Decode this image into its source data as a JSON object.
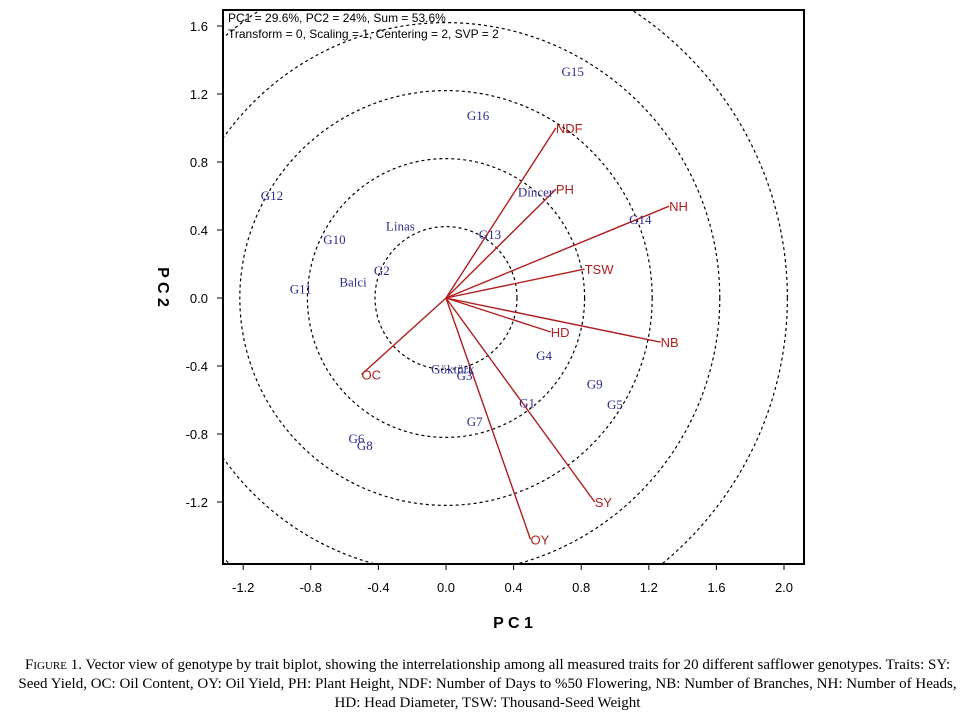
{
  "chart_data": {
    "type": "scatter",
    "header": {
      "line1": "PC1 = 29.6%, PC2 = 24%, Sum = 53.6%",
      "line2": "Transform = 0, Scaling = 1, Centering = 2, SVP = 2"
    },
    "xlabel": "P C 1",
    "ylabel": "P C 2",
    "xlim": [
      -1.3,
      2.1
    ],
    "ylim": [
      -1.55,
      1.7
    ],
    "x_ticks": [
      "-1.2",
      "-0.8",
      "-0.4",
      "0.0",
      "0.4",
      "0.8",
      "1.2",
      "1.6",
      "2.0"
    ],
    "y_ticks": [
      "1.6",
      "1.2",
      "0.8",
      "0.4",
      "0.0",
      "-0.4",
      "-0.8",
      "-1.2"
    ],
    "circle_radii": [
      0.42,
      0.82,
      1.22,
      1.62,
      2.02
    ],
    "origin": [
      0,
      0
    ],
    "traits": [
      {
        "label": "NDF",
        "x": 0.65,
        "y": 1.0
      },
      {
        "label": "PH",
        "x": 0.65,
        "y": 0.64
      },
      {
        "label": "NH",
        "x": 1.32,
        "y": 0.54
      },
      {
        "label": "TSW",
        "x": 0.82,
        "y": 0.17
      },
      {
        "label": "HD",
        "x": 0.62,
        "y": -0.2
      },
      {
        "label": "NB",
        "x": 1.27,
        "y": -0.26
      },
      {
        "label": "SY",
        "x": 0.88,
        "y": -1.2
      },
      {
        "label": "OY",
        "x": 0.5,
        "y": -1.42
      },
      {
        "label": "OC",
        "x": -0.5,
        "y": -0.45
      }
    ],
    "genotypes": [
      {
        "label": "G15",
        "x": 0.75,
        "y": 1.33
      },
      {
        "label": "G16",
        "x": 0.19,
        "y": 1.07
      },
      {
        "label": "Dincer",
        "x": 0.53,
        "y": 0.62
      },
      {
        "label": "G12",
        "x": -1.03,
        "y": 0.6
      },
      {
        "label": "G14",
        "x": 1.15,
        "y": 0.46
      },
      {
        "label": "Linas",
        "x": -0.27,
        "y": 0.42
      },
      {
        "label": "G13",
        "x": 0.26,
        "y": 0.37
      },
      {
        "label": "G10",
        "x": -0.66,
        "y": 0.34
      },
      {
        "label": "G2",
        "x": -0.38,
        "y": 0.16
      },
      {
        "label": "Balci",
        "x": -0.55,
        "y": 0.09
      },
      {
        "label": "G11",
        "x": -0.86,
        "y": 0.05
      },
      {
        "label": "G4",
        "x": 0.58,
        "y": -0.34
      },
      {
        "label": "Göktürk",
        "x": 0.04,
        "y": -0.42
      },
      {
        "label": "G3",
        "x": 0.11,
        "y": -0.46
      },
      {
        "label": "G9",
        "x": 0.88,
        "y": -0.51
      },
      {
        "label": "G1",
        "x": 0.48,
        "y": -0.62
      },
      {
        "label": "G5",
        "x": 1.0,
        "y": -0.63
      },
      {
        "label": "G7",
        "x": 0.17,
        "y": -0.73
      },
      {
        "label": "G6",
        "x": -0.53,
        "y": -0.83
      },
      {
        "label": "G8",
        "x": -0.48,
        "y": -0.87
      }
    ]
  },
  "caption": {
    "figure_label": "Figure 1.",
    "text": "Vector view of genotype by trait biplot, showing the interrelationship among all measured traits for 20 different safflower genotypes. Traits: SY: Seed Yield, OC: Oil Content, OY: Oil Yield, PH: Plant Height, NDF: Number of Days to %50 Flowering, NB: Number of Branches, NH: Number of Heads, HD: Head Diameter, TSW: Thousand-Seed Weight"
  },
  "colors": {
    "trait": "#b01e1e",
    "genotype": "#2b2b8c",
    "frame": "#000000"
  }
}
